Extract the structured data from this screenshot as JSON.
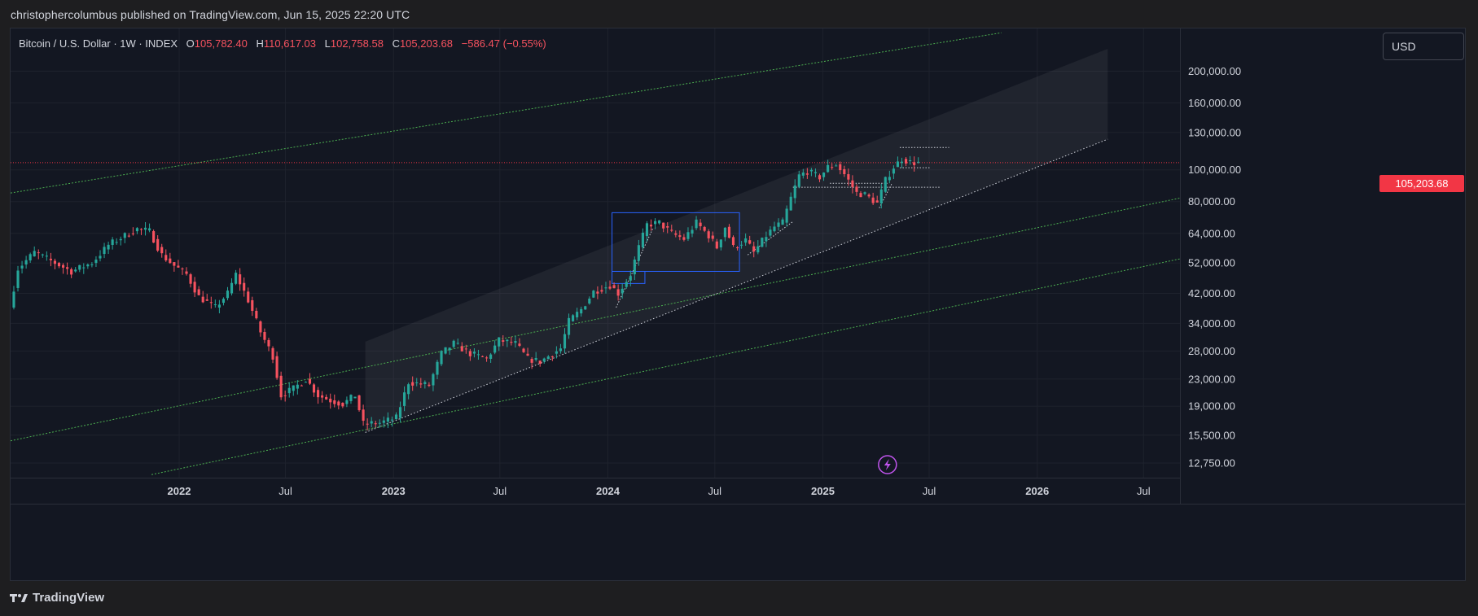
{
  "header": {
    "published": "christophercolumbus published on TradingView.com, Jun 15, 2025 22:20 UTC"
  },
  "footer": {
    "brand": "TradingView"
  },
  "toolbar": {
    "currency_label": "USD"
  },
  "legend": {
    "symbol": "Bitcoin / U.S. Dollar · 1W · INDEX",
    "open_label": "O",
    "open": "105,782.40",
    "high_label": "H",
    "high": "110,617.03",
    "low_label": "L",
    "low": "102,758.58",
    "close_label": "C",
    "close": "105,203.68",
    "change": "−586.47 (−0.55%)"
  },
  "colors": {
    "up": "#26a69a",
    "down": "#f7525f",
    "channel": "#4caf50",
    "box": "#2962ff",
    "price_line": "#f23645"
  },
  "chart_data": {
    "type": "candlestick",
    "interval": "1W",
    "y_scale": "log",
    "ylim": [
      11500,
      270000
    ],
    "xlim": [
      "2021-03-20",
      "2026-09-01"
    ],
    "current_price": {
      "value": 105203.68,
      "label": "105,203.68"
    },
    "y_ticks": [
      {
        "v": 200000,
        "label": "200,000.00"
      },
      {
        "v": 160000,
        "label": "160,000.00"
      },
      {
        "v": 130000,
        "label": "130,000.00"
      },
      {
        "v": 100000,
        "label": "100,000.00"
      },
      {
        "v": 80000,
        "label": "80,000.00"
      },
      {
        "v": 64000,
        "label": "64,000.00"
      },
      {
        "v": 52000,
        "label": "52,000.00"
      },
      {
        "v": 42000,
        "label": "42,000.00"
      },
      {
        "v": 34000,
        "label": "34,000.00"
      },
      {
        "v": 28000,
        "label": "28,000.00"
      },
      {
        "v": 23000,
        "label": "23,000.00"
      },
      {
        "v": 19000,
        "label": "19,000.00"
      },
      {
        "v": 15500,
        "label": "15,500.00"
      },
      {
        "v": 12750,
        "label": "12,750.00"
      }
    ],
    "x_ticks": [
      {
        "t": "2022-01-01",
        "label": "2022",
        "major": true
      },
      {
        "t": "2022-07-01",
        "label": "Jul",
        "major": false
      },
      {
        "t": "2023-01-01",
        "label": "2023",
        "major": true
      },
      {
        "t": "2023-07-01",
        "label": "Jul",
        "major": false
      },
      {
        "t": "2024-01-01",
        "label": "2024",
        "major": true
      },
      {
        "t": "2024-07-01",
        "label": "Jul",
        "major": false
      },
      {
        "t": "2025-01-01",
        "label": "2025",
        "major": true
      },
      {
        "t": "2025-07-01",
        "label": "Jul",
        "major": false
      },
      {
        "t": "2026-01-01",
        "label": "2026",
        "major": true
      },
      {
        "t": "2026-07-01",
        "label": "Jul",
        "major": false
      }
    ],
    "price_path": [
      [
        "2021-03-22",
        38000
      ],
      [
        "2021-04-05",
        50000
      ],
      [
        "2021-05-03",
        56000
      ],
      [
        "2021-06-07",
        52000
      ],
      [
        "2021-07-05",
        49000
      ],
      [
        "2021-08-09",
        52000
      ],
      [
        "2021-09-06",
        59000
      ],
      [
        "2021-09-27",
        62000
      ],
      [
        "2021-10-25",
        66000
      ],
      [
        "2021-11-15",
        65000
      ],
      [
        "2021-12-06",
        55000
      ],
      [
        "2021-12-27",
        51000
      ],
      [
        "2022-01-17",
        48000
      ],
      [
        "2022-02-07",
        41000
      ],
      [
        "2022-03-07",
        38000
      ],
      [
        "2022-03-28",
        42000
      ],
      [
        "2022-04-11",
        48000
      ],
      [
        "2022-05-02",
        40000
      ],
      [
        "2022-05-23",
        32000
      ],
      [
        "2022-06-13",
        27000
      ],
      [
        "2022-06-27",
        20500
      ],
      [
        "2022-07-18",
        21500
      ],
      [
        "2022-08-08",
        23000
      ],
      [
        "2022-08-29",
        20500
      ],
      [
        "2022-09-19",
        19800
      ],
      [
        "2022-10-10",
        19300
      ],
      [
        "2022-10-31",
        20500
      ],
      [
        "2022-11-14",
        16800
      ],
      [
        "2022-12-12",
        16900
      ],
      [
        "2023-01-09",
        17500
      ],
      [
        "2023-01-30",
        22500
      ],
      [
        "2023-03-06",
        22000
      ],
      [
        "2023-03-27",
        27500
      ],
      [
        "2023-04-17",
        29500
      ],
      [
        "2023-05-15",
        27500
      ],
      [
        "2023-06-12",
        26500
      ],
      [
        "2023-07-03",
        30200
      ],
      [
        "2023-07-31",
        29500
      ],
      [
        "2023-08-21",
        26500
      ],
      [
        "2023-09-11",
        26000
      ],
      [
        "2023-10-16",
        28500
      ],
      [
        "2023-10-30",
        34500
      ],
      [
        "2023-11-20",
        37500
      ],
      [
        "2023-12-11",
        42500
      ],
      [
        "2024-01-08",
        44500
      ],
      [
        "2024-01-22",
        42000
      ],
      [
        "2024-02-12",
        48000
      ],
      [
        "2024-02-26",
        58000
      ],
      [
        "2024-03-11",
        68000
      ],
      [
        "2024-04-01",
        69000
      ],
      [
        "2024-04-22",
        64000
      ],
      [
        "2024-05-13",
        61500
      ],
      [
        "2024-06-03",
        69000
      ],
      [
        "2024-06-24",
        63000
      ],
      [
        "2024-07-08",
        58000
      ],
      [
        "2024-07-22",
        67000
      ],
      [
        "2024-08-05",
        58000
      ],
      [
        "2024-08-26",
        61000
      ],
      [
        "2024-09-09",
        56000
      ],
      [
        "2024-09-30",
        63000
      ],
      [
        "2024-10-14",
        67000
      ],
      [
        "2024-10-28",
        69000
      ],
      [
        "2024-11-11",
        82000
      ],
      [
        "2024-11-25",
        96000
      ],
      [
        "2024-12-09",
        99000
      ],
      [
        "2024-12-30",
        95000
      ],
      [
        "2025-01-13",
        102000
      ],
      [
        "2025-01-27",
        104000
      ],
      [
        "2025-02-10",
        97000
      ],
      [
        "2025-03-03",
        85000
      ],
      [
        "2025-03-17",
        84000
      ],
      [
        "2025-04-07",
        79000
      ],
      [
        "2025-04-21",
        93000
      ],
      [
        "2025-05-05",
        102000
      ],
      [
        "2025-05-19",
        108000
      ],
      [
        "2025-06-02",
        105500
      ],
      [
        "2025-06-09",
        105203
      ]
    ],
    "regression_channel": {
      "fill": [
        [
          "2022-11-14",
          29900
        ],
        [
          "2026-05-01",
          234000
        ],
        [
          "2026-05-01",
          124000
        ],
        [
          "2022-11-14",
          15800
        ]
      ],
      "lower_line": [
        [
          "2022-11-14",
          15800
        ],
        [
          "2026-05-01",
          124000
        ]
      ]
    },
    "green_channel_lines": [
      [
        [
          "2021-03-20",
          85000
        ],
        [
          "2025-11-01",
          262000
        ]
      ],
      [
        [
          "2021-03-20",
          14900
        ],
        [
          "2026-09-01",
          82000
        ]
      ],
      [
        [
          "2021-11-15",
          11750
        ],
        [
          "2026-09-01",
          53500
        ]
      ]
    ],
    "trend_lines": [
      [
        [
          "2024-01-15",
          38000
        ],
        [
          "2024-03-18",
          66500
        ]
      ],
      [
        [
          "2024-08-26",
          55000
        ],
        [
          "2024-11-11",
          69500
        ]
      ],
      [
        [
          "2025-04-07",
          76500
        ],
        [
          "2025-04-28",
          90500
        ]
      ]
    ],
    "boxes": [
      {
        "from": "2024-01-08",
        "to": "2024-08-12",
        "top": 74000,
        "bottom": 49000
      },
      {
        "from": "2024-01-08",
        "to": "2024-03-04",
        "top": 49000,
        "bottom": 45000
      }
    ],
    "dotted_levels": [
      {
        "from": "2025-05-12",
        "to": "2025-08-04",
        "v": 117000
      },
      {
        "from": "2025-05-12",
        "to": "2025-07-03",
        "v": 101500
      },
      {
        "from": "2024-11-11",
        "to": "2025-07-20",
        "v": 88500
      },
      {
        "from": "2025-01-13",
        "to": "2025-04-21",
        "v": 91000
      }
    ]
  }
}
